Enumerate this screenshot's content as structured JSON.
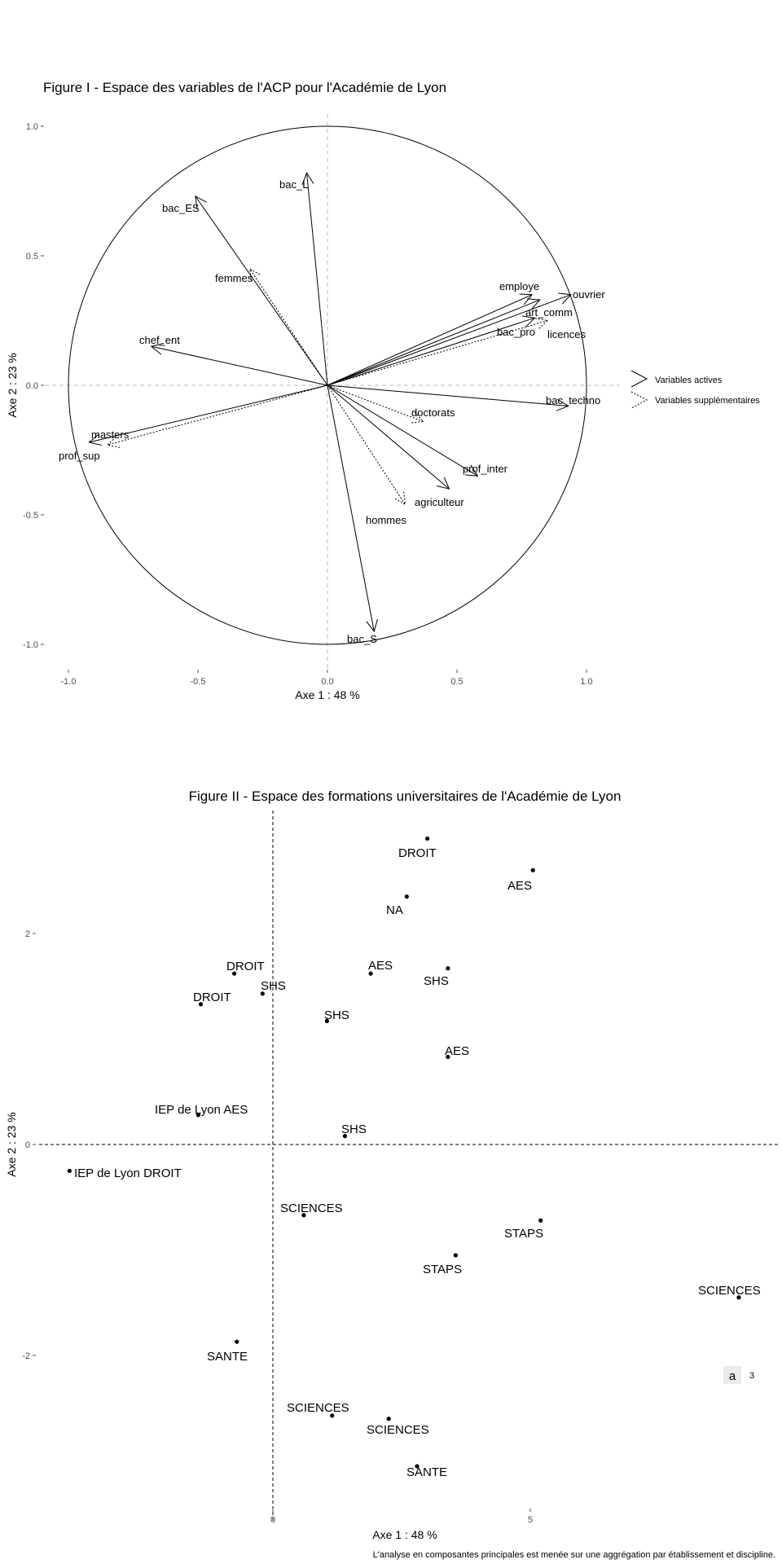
{
  "chart_data": [
    {
      "type": "scatter",
      "title": "Figure I - Espace des variables de l'ACP pour l'Académie de Lyon",
      "xlabel": "Axe 1 : 48 %",
      "ylabel": "Axe 2 : 23 %",
      "xlim": [
        -1.0,
        1.0
      ],
      "ylim": [
        -1.0,
        1.0
      ],
      "xticks": [
        -1.0,
        -0.5,
        0.0,
        0.5,
        1.0
      ],
      "xtick_labels": [
        "-1.0",
        "-0.5",
        "0.0",
        "0.5",
        "1.0"
      ],
      "yticks": [
        1.0,
        0.5,
        0.0,
        -0.5,
        -1.0
      ],
      "ytick_labels": [
        "1.0",
        "0.5",
        "0.0",
        "-0.5",
        "-1.0"
      ],
      "grid": false,
      "unit_circle": true,
      "legend": {
        "position": "right",
        "entries": [
          {
            "label": "Variables actives",
            "style": "solid"
          },
          {
            "label": "Variables supplémentaires",
            "style": "dotted"
          }
        ]
      },
      "series": [
        {
          "style": "solid",
          "points": [
            {
              "label": "bac_L",
              "x": -0.08,
              "y": 0.82
            },
            {
              "label": "bac_ES",
              "x": -0.51,
              "y": 0.73
            },
            {
              "label": "chef_ent",
              "x": -0.68,
              "y": 0.15
            },
            {
              "label": "masters",
              "x": -0.92,
              "y": -0.22
            },
            {
              "label": "employe",
              "x": 0.79,
              "y": 0.35
            },
            {
              "label": "ouvrier",
              "x": 0.94,
              "y": 0.35
            },
            {
              "label": "art_comm",
              "x": 0.82,
              "y": 0.33
            },
            {
              "label": "bac_pro",
              "x": 0.8,
              "y": 0.26
            },
            {
              "label": "bac_techno",
              "x": 0.93,
              "y": -0.08
            },
            {
              "label": "prof_inter",
              "x": 0.58,
              "y": -0.35
            },
            {
              "label": "agriculteur",
              "x": 0.47,
              "y": -0.4
            },
            {
              "label": "bac_S",
              "x": 0.18,
              "y": -0.95
            }
          ]
        },
        {
          "style": "dotted",
          "points": [
            {
              "label": "femmes",
              "x": -0.3,
              "y": 0.45
            },
            {
              "label": "prof_sup",
              "x": -0.85,
              "y": -0.23
            },
            {
              "label": "licences",
              "x": 0.85,
              "y": 0.25
            },
            {
              "label": "doctorats",
              "x": 0.37,
              "y": -0.14
            },
            {
              "label": "hommes",
              "x": 0.3,
              "y": -0.46
            }
          ]
        }
      ]
    },
    {
      "type": "scatter",
      "title": "Figure II - Espace des formations universitaires de l'Académie de Lyon",
      "xlabel": "Axe 1 : 48 %",
      "ylabel": "Axe 2 : 23 %",
      "xlim": [
        -4.2,
        9.2
      ],
      "ylim": [
        -3.1,
        3.25
      ],
      "xticks": [
        0,
        5
      ],
      "xtick_labels": [
        "0",
        "5"
      ],
      "yticks": [
        2,
        0,
        -2
      ],
      "ytick_labels": [
        "2",
        "0",
        "-2"
      ],
      "grid": false,
      "legend": {
        "position": "bottom-right",
        "entries": [
          {
            "key": "a",
            "label": "3"
          }
        ]
      },
      "caption": "L'analyse en composantes principales est menée sur une aggrégation par établissement et discipline.",
      "points": [
        {
          "label": "DROIT",
          "x": 3.0,
          "y": 2.9
        },
        {
          "label": "AES",
          "x": 5.05,
          "y": 2.6
        },
        {
          "label": "NA",
          "x": 2.6,
          "y": 2.35
        },
        {
          "label": "DROIT",
          "x": -0.75,
          "y": 1.62
        },
        {
          "label": "SHS",
          "x": -0.2,
          "y": 1.43
        },
        {
          "label": "DROIT",
          "x": -1.4,
          "y": 1.33
        },
        {
          "label": "AES",
          "x": 1.9,
          "y": 1.62
        },
        {
          "label": "SHS",
          "x": 3.4,
          "y": 1.67
        },
        {
          "label": "SHS",
          "x": 1.05,
          "y": 1.17
        },
        {
          "label": "AES",
          "x": 3.4,
          "y": 0.83
        },
        {
          "label": "IEP de Lyon AES",
          "x": -1.45,
          "y": 0.28
        },
        {
          "label": "SHS",
          "x": 1.4,
          "y": 0.08
        },
        {
          "label": "IEP de Lyon DROIT",
          "x": -3.95,
          "y": -0.25
        },
        {
          "label": "SCIENCES",
          "x": 0.6,
          "y": -0.67
        },
        {
          "label": "STAPS",
          "x": 5.2,
          "y": -0.72
        },
        {
          "label": "STAPS",
          "x": 3.55,
          "y": -1.05
        },
        {
          "label": "SCIENCES",
          "x": 9.05,
          "y": -1.45
        },
        {
          "label": "SANTE",
          "x": -0.7,
          "y": -1.87
        },
        {
          "label": "SCIENCES",
          "x": 1.15,
          "y": -2.57
        },
        {
          "label": "SCIENCES",
          "x": 2.25,
          "y": -2.6
        },
        {
          "label": "SANTE",
          "x": 2.8,
          "y": -3.05
        }
      ]
    }
  ]
}
